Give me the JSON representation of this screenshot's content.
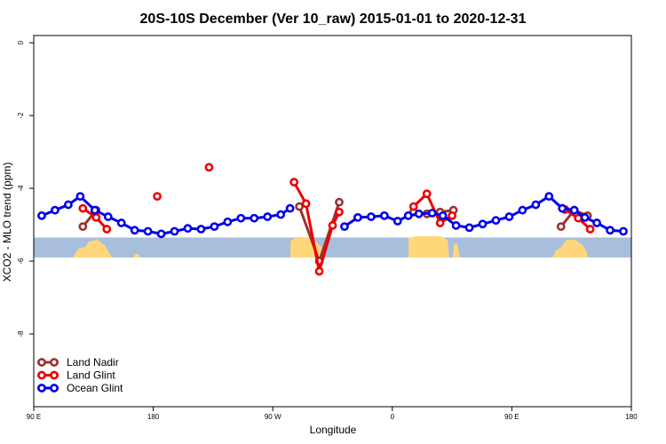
{
  "chart_data": {
    "type": "line",
    "title": "20S-10S December (Ver 10_raw)   2015-01-01 to 2020-12-31",
    "xlabel": "Longitude",
    "ylabel": "XCO2 - MLO trend (ppm)",
    "x_ticks": [
      {
        "value": 90,
        "label": "90 E"
      },
      {
        "value": 180,
        "label": "180"
      },
      {
        "value": 270,
        "label": "90 W"
      },
      {
        "value": 360,
        "label": "0"
      },
      {
        "value": 450,
        "label": "90 E"
      },
      {
        "value": 540,
        "label": "180"
      }
    ],
    "y_ticks": [
      {
        "value": 0,
        "label": "0"
      },
      {
        "value": -2,
        "label": "-2"
      },
      {
        "value": -4,
        "label": "-4"
      },
      {
        "value": -6,
        "label": "-6"
      },
      {
        "value": -8,
        "label": "-8"
      }
    ],
    "xlim": [
      90,
      540
    ],
    "ylim": [
      -10,
      0.2
    ],
    "grid": false,
    "legend_position": "bottom-left",
    "land_band": {
      "y_top": -5.35,
      "y_bottom": -5.9,
      "ocean_color": "#a8bedd",
      "land_color": "#ffd67a"
    },
    "series": [
      {
        "name": "Land Nadir",
        "color": "#993333",
        "segments": [
          [
            [
              127,
              -5.05
            ],
            [
              137,
              -4.6
            ]
          ],
          [
            [
              290,
              -4.5
            ],
            [
              305,
              -6.0
            ],
            [
              320,
              -4.38
            ]
          ],
          [
            [
              376,
              -4.65
            ],
            [
              386,
              -4.7
            ],
            [
              396,
              -4.65
            ],
            [
              406,
              -4.6
            ]
          ],
          [
            [
              487,
              -5.05
            ],
            [
              497,
              -4.6
            ],
            [
              507,
              -4.75
            ]
          ]
        ]
      },
      {
        "name": "Land Glint",
        "color": "#ee0000",
        "points": [
          [
            183,
            -4.22
          ],
          [
            222,
            -3.42
          ]
        ],
        "segments": [
          [
            [
              127,
              -4.55
            ],
            [
              137,
              -4.8
            ],
            [
              145,
              -5.12
            ]
          ],
          [
            [
              286,
              -3.83
            ],
            [
              295,
              -4.42
            ],
            [
              305,
              -6.28
            ],
            [
              315,
              -5.02
            ],
            [
              320,
              -4.65
            ]
          ],
          [
            [
              376,
              -4.5
            ],
            [
              386,
              -4.15
            ],
            [
              396,
              -4.95
            ],
            [
              405,
              -4.75
            ]
          ],
          [
            [
              490,
              -4.58
            ],
            [
              500,
              -4.82
            ],
            [
              509,
              -5.12
            ]
          ]
        ]
      },
      {
        "name": "Ocean Glint",
        "color": "#0000ee",
        "segments": [
          [
            [
              96,
              -4.75
            ],
            [
              106,
              -4.6
            ],
            [
              116,
              -4.45
            ],
            [
              125,
              -4.22
            ],
            [
              136,
              -4.6
            ],
            [
              146,
              -4.78
            ],
            [
              156,
              -4.95
            ],
            [
              166,
              -5.15
            ],
            [
              176,
              -5.18
            ],
            [
              186,
              -5.25
            ],
            [
              196,
              -5.18
            ],
            [
              206,
              -5.1
            ],
            [
              216,
              -5.12
            ],
            [
              226,
              -5.05
            ],
            [
              236,
              -4.92
            ],
            [
              246,
              -4.82
            ],
            [
              256,
              -4.82
            ],
            [
              266,
              -4.78
            ],
            [
              276,
              -4.72
            ],
            [
              283,
              -4.55
            ]
          ],
          [
            [
              324,
              -5.05
            ],
            [
              334,
              -4.8
            ],
            [
              344,
              -4.78
            ],
            [
              354,
              -4.75
            ],
            [
              364,
              -4.9
            ],
            [
              372,
              -4.75
            ],
            [
              380,
              -4.7
            ],
            [
              390,
              -4.68
            ],
            [
              398,
              -4.75
            ],
            [
              408,
              -5.02
            ],
            [
              418,
              -5.08
            ],
            [
              428,
              -4.98
            ],
            [
              438,
              -4.88
            ],
            [
              448,
              -4.78
            ],
            [
              458,
              -4.6
            ],
            [
              468,
              -4.45
            ],
            [
              478,
              -4.22
            ],
            [
              488,
              -4.55
            ],
            [
              497,
              -4.6
            ],
            [
              505,
              -4.8
            ],
            [
              514,
              -4.95
            ],
            [
              524,
              -5.15
            ],
            [
              534,
              -5.18
            ]
          ]
        ]
      }
    ]
  }
}
